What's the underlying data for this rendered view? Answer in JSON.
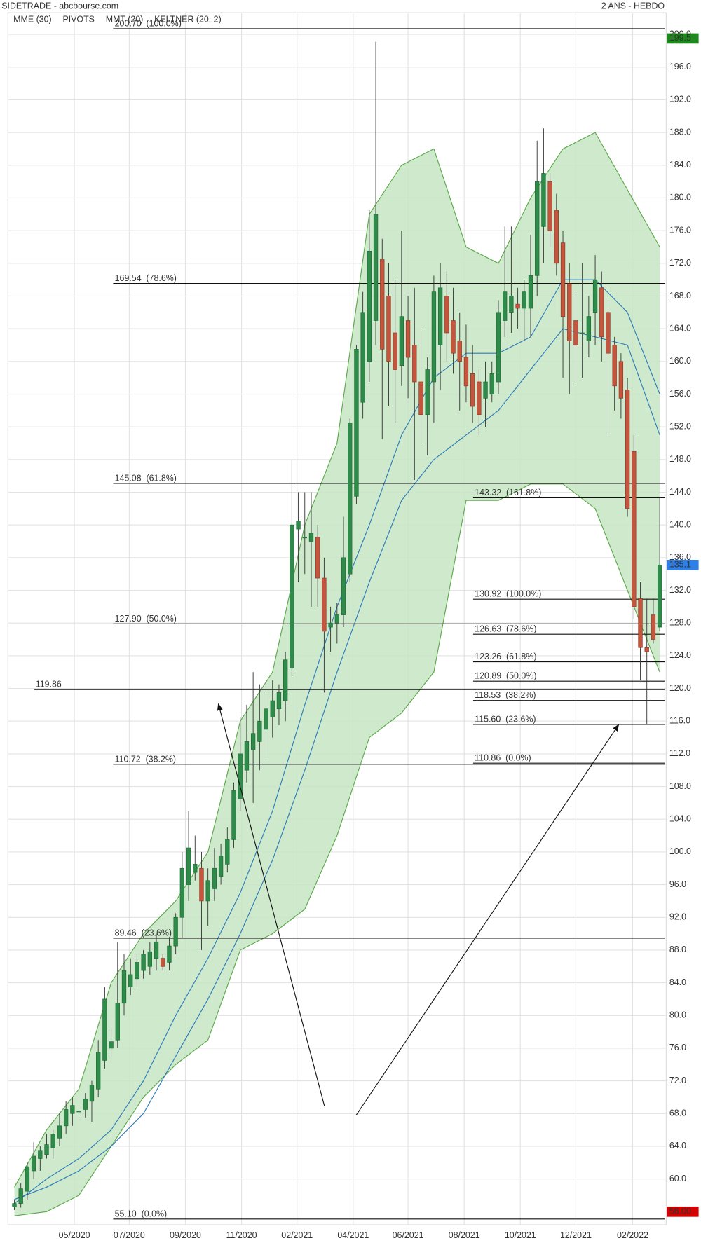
{
  "chart_data": {
    "type": "candlestick",
    "title": "SIDETRADE - abcbourse.com",
    "subtitle": "2 ANS - HEBDO",
    "xlim": [
      -1,
      101
    ],
    "xticks": [
      {
        "value": 9.3,
        "label": "05/2020"
      },
      {
        "value": 17.8,
        "label": "07/2020"
      },
      {
        "value": 26.5,
        "label": "09/2020"
      },
      {
        "value": 35.2,
        "label": "11/2020"
      },
      {
        "value": 43.8,
        "label": "02/2021"
      },
      {
        "value": 52.5,
        "label": "04/2021"
      },
      {
        "value": 61,
        "label": "06/2021"
      },
      {
        "value": 69.7,
        "label": "08/2021"
      },
      {
        "value": 78.4,
        "label": "10/2021"
      },
      {
        "value": 87,
        "label": "12/2021"
      },
      {
        "value": 95.8,
        "label": "02/2022"
      }
    ],
    "ylim": [
      54.4,
      201.3
    ],
    "yticks": [
      {
        "value": 60,
        "label": "60.0"
      },
      {
        "value": 64,
        "label": "64.0"
      },
      {
        "value": 68,
        "label": "68.0"
      },
      {
        "value": 72,
        "label": "72.0"
      },
      {
        "value": 76,
        "label": "76.0"
      },
      {
        "value": 80,
        "label": "80.0"
      },
      {
        "value": 84,
        "label": "84.0"
      },
      {
        "value": 88,
        "label": "88.0"
      },
      {
        "value": 92,
        "label": "92.0"
      },
      {
        "value": 96,
        "label": "96.0"
      },
      {
        "value": 100,
        "label": "100.0"
      },
      {
        "value": 104,
        "label": "104.0"
      },
      {
        "value": 108,
        "label": "108.0"
      },
      {
        "value": 112,
        "label": "112.0"
      },
      {
        "value": 116,
        "label": "116.0"
      },
      {
        "value": 120,
        "label": "120.0"
      },
      {
        "value": 124,
        "label": "124.0"
      },
      {
        "value": 128,
        "label": "128.0"
      },
      {
        "value": 132,
        "label": "132.0"
      },
      {
        "value": 136,
        "label": "136.0"
      },
      {
        "value": 140,
        "label": "140.0"
      },
      {
        "value": 144,
        "label": "144.0"
      },
      {
        "value": 148,
        "label": "148.0"
      },
      {
        "value": 152,
        "label": "152.0"
      },
      {
        "value": 156,
        "label": "156.0"
      },
      {
        "value": 160,
        "label": "160.0"
      },
      {
        "value": 164,
        "label": "164.0"
      },
      {
        "value": 168,
        "label": "168.0"
      },
      {
        "value": 172,
        "label": "172.0"
      },
      {
        "value": 176,
        "label": "176.0"
      },
      {
        "value": 180,
        "label": "180.0"
      },
      {
        "value": 184,
        "label": "184.0"
      },
      {
        "value": 188,
        "label": "188.0"
      },
      {
        "value": 192,
        "label": "192.0"
      },
      {
        "value": 196,
        "label": "196.0"
      },
      {
        "value": 200,
        "label": "200.0"
      }
    ],
    "grid": true,
    "up_color": "#2e8b4a",
    "down_color": "#c5553d",
    "candles": {
      "open": [
        56.6,
        57.0,
        58.5,
        61.0,
        62.5,
        63.0,
        63.8,
        65.0,
        66.5,
        68.0,
        68.2,
        68.5,
        69.5,
        71.0,
        74.5,
        76.0,
        77.0,
        81.5,
        83.5,
        84.5,
        85.5,
        86.0,
        87.0,
        87.0,
        86.5,
        88.5,
        92.0,
        96.0,
        97.5,
        98.0,
        94.0,
        95.5,
        97.0,
        98.5,
        101.5,
        106.5,
        110.0,
        112.5,
        113.5,
        115.0,
        116.5,
        117.5,
        118.5,
        122.5,
        139.5,
        138.5,
        138.0,
        138.5,
        133.5,
        127.5,
        128.0,
        129.0,
        134.0,
        143.5,
        155.0,
        160.0,
        165.0,
        172.5,
        168.0,
        163.5,
        159.5,
        165.0,
        162.0,
        157.5,
        153.5,
        157.5,
        162.0,
        168.0,
        165.0,
        162.5,
        160.5,
        158.5,
        157.5,
        155.5,
        156.0,
        157.5,
        165.0,
        166.0,
        167.0,
        166.5,
        166.5,
        170.5,
        176.5,
        182.0,
        178.5,
        174.5,
        169.5,
        165.0,
        163.5,
        162.5,
        166.0,
        169.0,
        166.0,
        162.0,
        160.0,
        156.5,
        149.0,
        131.0,
        125.0,
        129.0,
        127.5
      ],
      "high": [
        57.5,
        59.5,
        62.0,
        64.5,
        64.0,
        65.5,
        66.0,
        68.0,
        69.5,
        70.0,
        69.0,
        70.5,
        72.0,
        77.0,
        83.5,
        78.5,
        89.0,
        87.5,
        87.0,
        87.5,
        88.0,
        89.0,
        90.0,
        87.5,
        89.5,
        92.5,
        100.0,
        105.0,
        102.0,
        100.0,
        98.0,
        100.5,
        101.0,
        103.0,
        108.5,
        116.5,
        118.0,
        122.0,
        120.5,
        121.5,
        121.0,
        120.5,
        124.5,
        148.0,
        144.0,
        144.0,
        144.0,
        140.0,
        136.0,
        130.0,
        130.5,
        141.0,
        153.0,
        162.0,
        168.5,
        178.5,
        199.1,
        175.0,
        172.0,
        170.0,
        176.0,
        168.0,
        169.0,
        164.0,
        160.5,
        170.5,
        172.0,
        171.0,
        169.0,
        166.0,
        164.5,
        162.0,
        159.0,
        160.0,
        160.0,
        167.5,
        176.5,
        176.5,
        169.0,
        170.0,
        175.5,
        187.0,
        188.5,
        183.0,
        180.5,
        176.0,
        172.0,
        168.5,
        172.0,
        168.0,
        173.0,
        171.0,
        167.5,
        163.0,
        161.0,
        158.0,
        151.0,
        133.0,
        131.0,
        131.0,
        143.32
      ],
      "low": [
        56.2,
        56.5,
        57.5,
        60.0,
        61.0,
        62.5,
        62.5,
        64.0,
        65.5,
        66.5,
        67.5,
        67.5,
        67.0,
        70.0,
        73.5,
        75.0,
        76.0,
        80.0,
        82.5,
        83.5,
        84.5,
        85.0,
        85.5,
        85.5,
        85.5,
        87.5,
        89.5,
        94.0,
        96.5,
        88.0,
        91.0,
        94.0,
        96.0,
        97.5,
        100.5,
        105.0,
        108.5,
        106.0,
        110.0,
        111.5,
        114.0,
        115.5,
        116.0,
        121.5,
        133.0,
        134.0,
        130.0,
        130.0,
        119.5,
        124.5,
        125.5,
        127.5,
        133.0,
        142.5,
        153.0,
        157.5,
        162.0,
        150.5,
        154.5,
        152.5,
        157.0,
        155.5,
        145.5,
        150.0,
        148.5,
        152.5,
        156.5,
        160.0,
        158.5,
        154.0,
        155.0,
        152.5,
        151.0,
        152.0,
        155.0,
        156.0,
        163.0,
        163.5,
        164.0,
        162.5,
        163.0,
        168.0,
        172.0,
        174.0,
        170.5,
        158.0,
        156.0,
        157.5,
        158.0,
        160.5,
        162.0,
        160.0,
        151.0,
        154.0,
        153.0,
        141.0,
        128.5,
        121.0,
        115.6,
        125.5,
        127.0
      ],
      "close": [
        57.0,
        58.8,
        61.5,
        62.8,
        63.5,
        64.2,
        65.5,
        66.5,
        68.5,
        69.0,
        68.3,
        69.8,
        71.5,
        75.5,
        82.0,
        76.8,
        81.5,
        85.5,
        85.0,
        86.5,
        87.5,
        87.8,
        89.0,
        86.0,
        88.5,
        92.0,
        98.0,
        100.5,
        98.5,
        94.0,
        96.5,
        98.0,
        99.5,
        101.5,
        107.5,
        112.0,
        113.5,
        114.5,
        116.0,
        117.5,
        118.5,
        119.5,
        123.5,
        140.0,
        140.5,
        138.5,
        139.0,
        133.5,
        127.0,
        128.0,
        129.0,
        136.0,
        152.5,
        161.5,
        166.0,
        173.5,
        178.0,
        161.5,
        160.0,
        159.0,
        165.5,
        160.5,
        157.5,
        153.5,
        159.0,
        168.5,
        169.0,
        163.5,
        161.0,
        160.0,
        157.0,
        154.5,
        153.5,
        157.5,
        158.5,
        166.0,
        168.5,
        168.0,
        166.5,
        168.5,
        170.5,
        182.0,
        183.0,
        176.0,
        172.0,
        165.5,
        162.5,
        162.0,
        163.5,
        165.5,
        170.0,
        163.0,
        161.0,
        157.0,
        155.5,
        142.0,
        130.0,
        125.0,
        124.5,
        126.0,
        135.1
      ]
    },
    "keltner": {
      "name": "KELTNER (20, 2)",
      "color": "#5aa84a",
      "fill": "#c7e5c3",
      "x": [
        0,
        5,
        10,
        15,
        20,
        25,
        30,
        35,
        40,
        45,
        50,
        55,
        60,
        65,
        70,
        75,
        80,
        85,
        90,
        95,
        100
      ],
      "upper": [
        59,
        66,
        71,
        84,
        90,
        94,
        100,
        116,
        122,
        140,
        150,
        178,
        184,
        186,
        174,
        172,
        180,
        186,
        188,
        181,
        174
      ],
      "lower": [
        55.5,
        56,
        58,
        64,
        70,
        74,
        77,
        88,
        90,
        93,
        102,
        114,
        117,
        122,
        143,
        143,
        145,
        145,
        142,
        132,
        122
      ]
    },
    "series": [
      {
        "name": "MME (30)",
        "color": "#2b7bb9",
        "x": [
          0,
          5,
          10,
          15,
          20,
          25,
          30,
          35,
          40,
          45,
          50,
          55,
          60,
          65,
          70,
          75,
          80,
          85,
          90,
          95,
          100
        ],
        "values": [
          57,
          60,
          62.5,
          66,
          72,
          80,
          87,
          95,
          105,
          118,
          130,
          140,
          151,
          158,
          161,
          161,
          163,
          170,
          170,
          166,
          156
        ]
      },
      {
        "name": "MMT (20)",
        "color": "#2b7bb9",
        "x": [
          0,
          5,
          10,
          15,
          20,
          25,
          30,
          35,
          40,
          45,
          50,
          55,
          60,
          65,
          70,
          75,
          80,
          85,
          90,
          95,
          100
        ],
        "values": [
          57.5,
          59,
          61,
          64,
          68,
          75,
          82,
          90,
          99,
          110,
          122,
          133,
          143,
          148,
          151,
          154,
          159,
          164,
          163,
          162,
          151
        ]
      }
    ],
    "pivots": {
      "name": "PIVOTS",
      "color": "#555555",
      "main": [
        {
          "value": 200.7,
          "label": "200.70  (100.0%)"
        },
        {
          "value": 169.54,
          "label": "169.54  (78.6%)"
        },
        {
          "value": 145.08,
          "label": "145.08  (61.8%)"
        },
        {
          "value": 127.9,
          "label": "127.90  (50.0%)"
        },
        {
          "value": 110.72,
          "label": "110.72  (38.2%)"
        },
        {
          "value": 89.46,
          "label": "89.46  (23.6%)"
        },
        {
          "value": 55.1,
          "label": "55.10  (0.0%)"
        }
      ],
      "recent": [
        {
          "value": 143.32,
          "label": "143.32  (161.8%)"
        },
        {
          "value": 130.92,
          "label": "130.92  (100.0%)"
        },
        {
          "value": 126.63,
          "label": "126.63  (78.6%)"
        },
        {
          "value": 123.26,
          "label": "123.26  (61.8%)"
        },
        {
          "value": 120.89,
          "label": "120.89  (50.0%)"
        },
        {
          "value": 118.53,
          "label": "118.53  (38.2%)"
        },
        {
          "value": 115.6,
          "label": "115.60  (23.6%)"
        },
        {
          "value": 110.86,
          "label": "110.86  (0.0%)"
        }
      ],
      "level": {
        "value": 119.86,
        "label": "119.86"
      }
    },
    "price_tags": [
      {
        "value": 199.5,
        "color": "#1e8a1e"
      },
      {
        "value": 135.1,
        "color": "#2f7fe8"
      },
      {
        "value": 56,
        "label": "56.00",
        "color": "#d50000"
      }
    ]
  }
}
